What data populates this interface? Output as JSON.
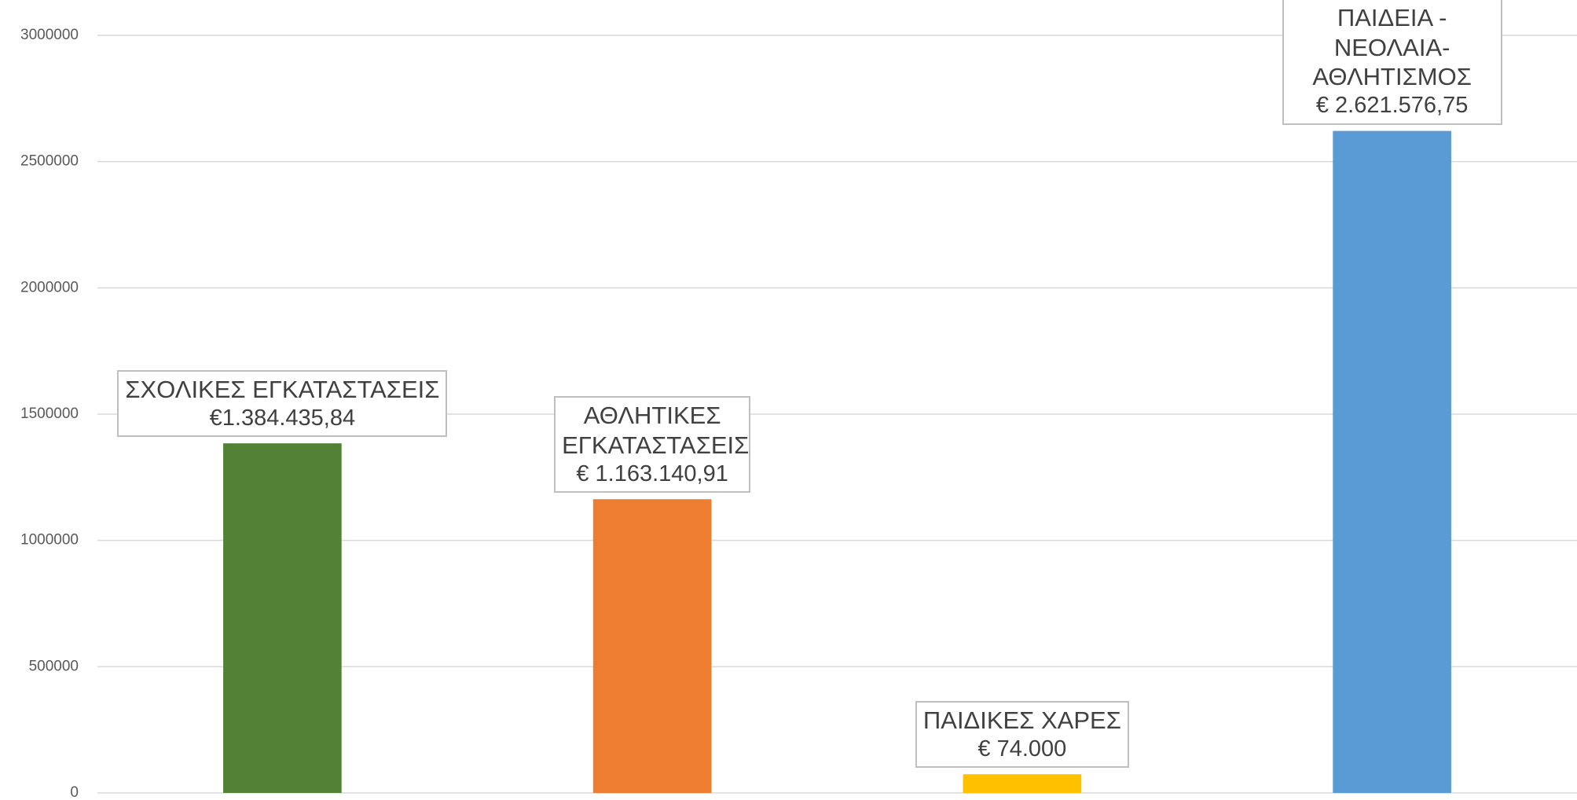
{
  "chart_data": {
    "type": "bar",
    "categories": [
      "ΣΧΟΛΙΚΕΣ ΕΓΚΑΤΑΣΤΑΣΕΙΣ",
      "ΑΘΛΗΤΙΚΕΣ ΕΓΚΑΤΑΣΤΑΣΕΙΣ",
      "ΠΑΙΔΙΚΕΣ ΧΑΡΕΣ",
      "ΠΑΙΔΕΙΑ - ΝΕΟΛΑΙΑ-ΑΘΛΗΤΙΣΜΟΣ"
    ],
    "values": [
      1384435.84,
      1163140.91,
      74000,
      2621576.75
    ],
    "value_labels": [
      "€1.384.435,84",
      "€ 1.163.140,91",
      "€ 74.000",
      "€ 2.621.576,75"
    ],
    "colors": [
      "#538135",
      "#ed7d31",
      "#ffc000",
      "#5b9bd5"
    ],
    "ylim": [
      0,
      3000000
    ],
    "yticks": [
      0,
      500000,
      1000000,
      1500000,
      2000000,
      2500000,
      3000000
    ],
    "grid": true
  }
}
